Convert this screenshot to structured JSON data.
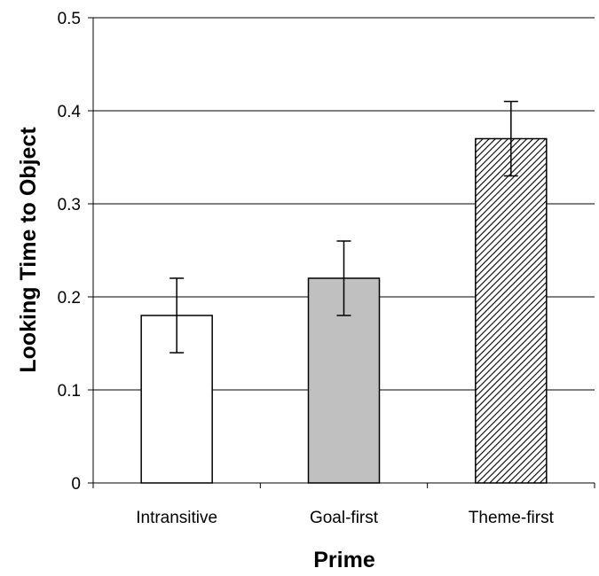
{
  "chart_data": {
    "type": "bar",
    "title": "",
    "xlabel": "Prime",
    "ylabel": "Looking Time to Object",
    "categories": [
      "Intransitive",
      "Goal-first",
      "Theme-first"
    ],
    "values": [
      0.18,
      0.22,
      0.37
    ],
    "error_low": [
      0.14,
      0.18,
      0.33
    ],
    "error_high": [
      0.22,
      0.26,
      0.41
    ],
    "ylim": [
      0,
      0.5
    ],
    "yticks": [
      "0",
      "0.1",
      "0.2",
      "0.3",
      "0.4",
      "0.5"
    ],
    "grid": true,
    "bar_fills": [
      "white",
      "gray",
      "hatched"
    ],
    "colors": {
      "white": "#ffffff",
      "gray": "#c0c0c0",
      "hatch": "#000000",
      "grid": "#000000"
    }
  }
}
